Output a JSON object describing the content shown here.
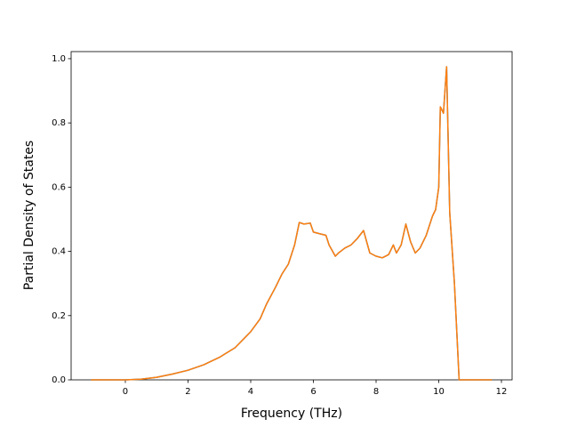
{
  "chart_data": {
    "type": "line",
    "xlabel": "Frequency (THz)",
    "ylabel": "Partial Density of States",
    "x": [
      -1.1,
      -0.5,
      0,
      0.5,
      1,
      1.5,
      2,
      2.5,
      3,
      3.5,
      4,
      4.3,
      4.5,
      4.8,
      5.0,
      5.2,
      5.4,
      5.55,
      5.7,
      5.9,
      6.0,
      6.2,
      6.4,
      6.5,
      6.7,
      6.8,
      7.0,
      7.2,
      7.4,
      7.6,
      7.7,
      7.8,
      8.0,
      8.2,
      8.4,
      8.55,
      8.65,
      8.8,
      8.95,
      9.1,
      9.25,
      9.4,
      9.6,
      9.8,
      9.9,
      10.0,
      10.05,
      10.15,
      10.25,
      10.35,
      10.5,
      10.65,
      11.0,
      11.7
    ],
    "series": [
      {
        "color": "#1f77b4",
        "values": [
          0,
          0,
          0,
          0.002,
          0.008,
          0.018,
          0.03,
          0.047,
          0.07,
          0.1,
          0.15,
          0.19,
          0.235,
          0.29,
          0.33,
          0.36,
          0.42,
          0.49,
          0.485,
          0.488,
          0.46,
          0.455,
          0.45,
          0.42,
          0.385,
          0.395,
          0.41,
          0.42,
          0.44,
          0.465,
          0.43,
          0.395,
          0.385,
          0.38,
          0.39,
          0.42,
          0.395,
          0.42,
          0.485,
          0.43,
          0.395,
          0.41,
          0.45,
          0.51,
          0.53,
          0.6,
          0.85,
          0.83,
          0.975,
          0.52,
          0.3,
          0,
          0,
          0
        ]
      },
      {
        "color": "#ff7f0e",
        "values": [
          0,
          0,
          0,
          0.002,
          0.008,
          0.018,
          0.03,
          0.047,
          0.07,
          0.1,
          0.15,
          0.19,
          0.235,
          0.29,
          0.33,
          0.36,
          0.42,
          0.49,
          0.485,
          0.488,
          0.46,
          0.455,
          0.45,
          0.42,
          0.385,
          0.395,
          0.41,
          0.42,
          0.44,
          0.465,
          0.43,
          0.395,
          0.385,
          0.38,
          0.39,
          0.42,
          0.395,
          0.42,
          0.485,
          0.43,
          0.395,
          0.41,
          0.45,
          0.51,
          0.53,
          0.6,
          0.85,
          0.83,
          0.975,
          0.52,
          0.3,
          0,
          0,
          0
        ]
      }
    ],
    "xlim": [
      -1.73,
      12.34
    ],
    "ylim": [
      0,
      1.022
    ],
    "xticks": [
      0,
      2,
      4,
      6,
      8,
      10,
      12
    ],
    "yticks": [
      {
        "value": 0,
        "label": "0.0"
      },
      {
        "value": 0.2,
        "label": "0.2"
      },
      {
        "value": 0.4,
        "label": "0.4"
      },
      {
        "value": 0.6,
        "label": "0.6"
      },
      {
        "value": 0.8,
        "label": "0.8"
      },
      {
        "value": 1,
        "label": "1.0"
      }
    ]
  }
}
